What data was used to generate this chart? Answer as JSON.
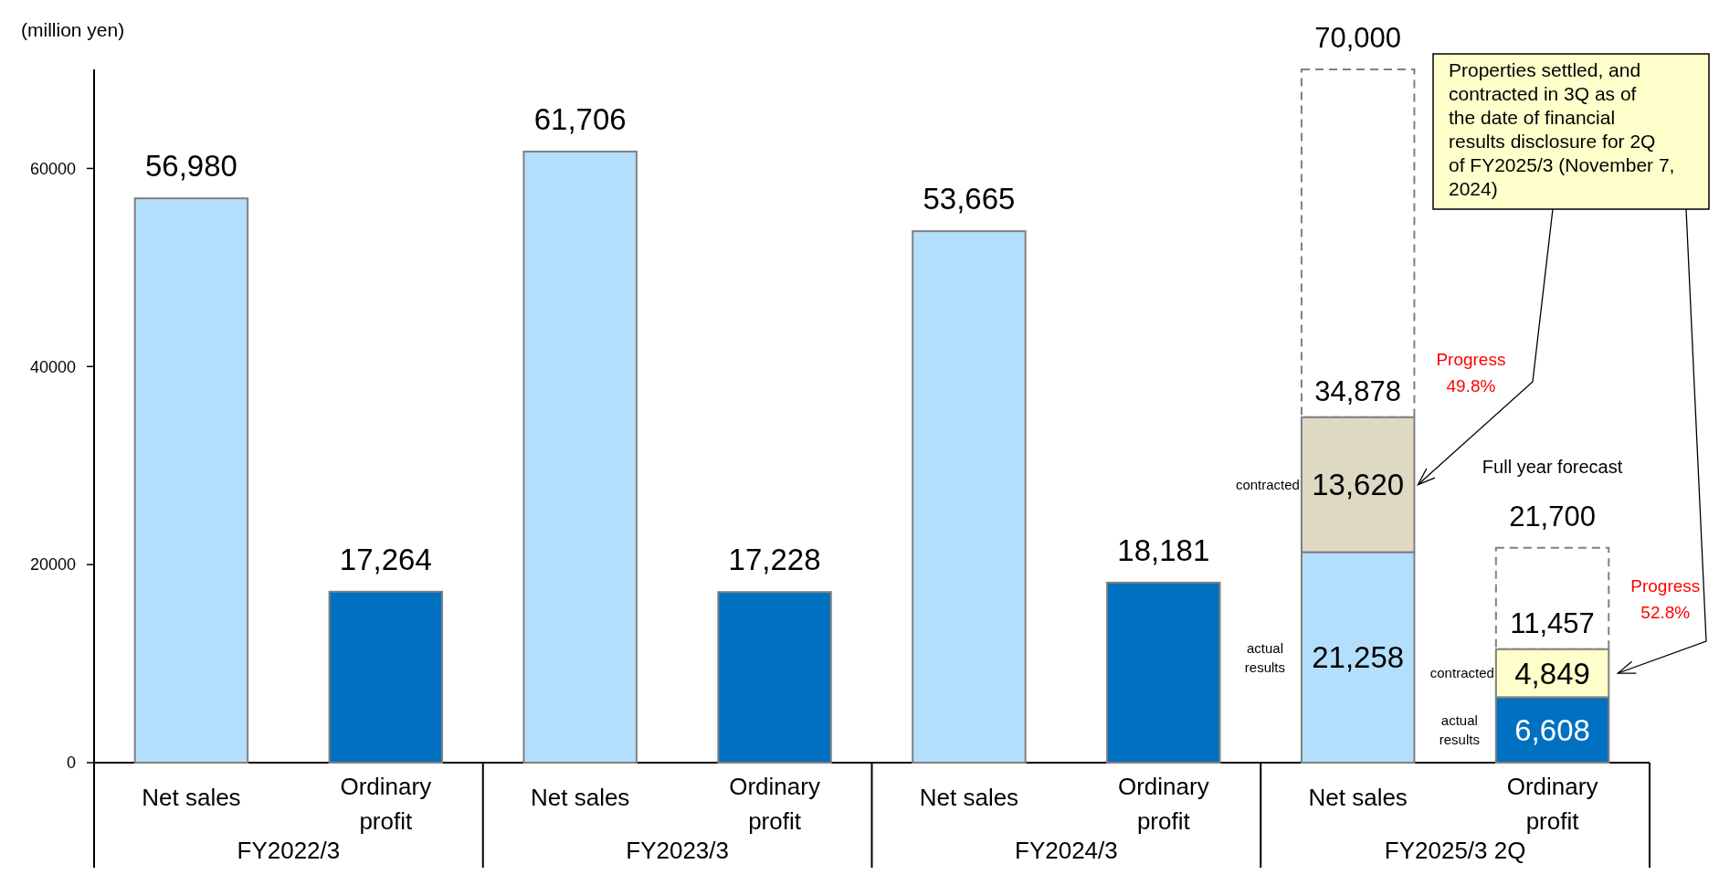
{
  "chart_data": {
    "type": "bar",
    "stacked": true,
    "ylabel": "(million yen)",
    "categories": [
      "Net sales",
      "Ordinary profit",
      "Net sales",
      "Ordinary profit",
      "Net sales",
      "Ordinary profit",
      "Net sales",
      "Ordinary profit"
    ],
    "ylim": [
      0,
      70000
    ],
    "yticks": [
      0,
      20000,
      40000,
      60000
    ],
    "series": [
      {
        "colors": [
          "#b3dffd",
          "#0070c0",
          "#b3dffd",
          "#0070c0",
          "#b3dffd",
          "#0070c0",
          "#b3dffd",
          "#0070c0"
        ],
        "values": [
          56980,
          17264,
          61706,
          17228,
          53665,
          18181,
          21258,
          6608
        ],
        "value_labels": [
          "56,980",
          "17,264",
          "61,706",
          "17,228",
          "53,665",
          "18,181",
          "21,258",
          "6,608"
        ]
      },
      {
        "colors": [
          null,
          null,
          null,
          null,
          null,
          null,
          "#ddd9c3",
          "#ffffcc"
        ],
        "values": [
          null,
          null,
          null,
          null,
          null,
          null,
          13620,
          4849
        ],
        "value_labels": [
          null,
          null,
          null,
          null,
          null,
          null,
          "13,620",
          "4,849"
        ]
      },
      {
        "type": "bar",
        "color": "#808080",
        "line_style": "dashed",
        "values": [
          null,
          null,
          null,
          null,
          null,
          null,
          35122,
          10243
        ]
      }
    ],
    "totals": [
      null,
      null,
      null,
      null,
      null,
      null,
      "70,000",
      "21,700"
    ],
    "annotations": [
      "FY2022/3",
      "FY2023/3",
      "FY2024/3",
      "FY2025/3 2Q",
      "Progress 49.8%",
      "Progress 52.8%",
      "Full year forecast",
      "contracted",
      "actual results",
      "contracted",
      "actual results",
      "Properties settled, and contracted in 3Q as of the date of financial results disclosure for 2Q of FY2025/3 (November 7, 2024)",
      {
        "text": "34,878",
        "y": 34878
      },
      {
        "text": "11,457",
        "y": 11457
      }
    ]
  }
}
